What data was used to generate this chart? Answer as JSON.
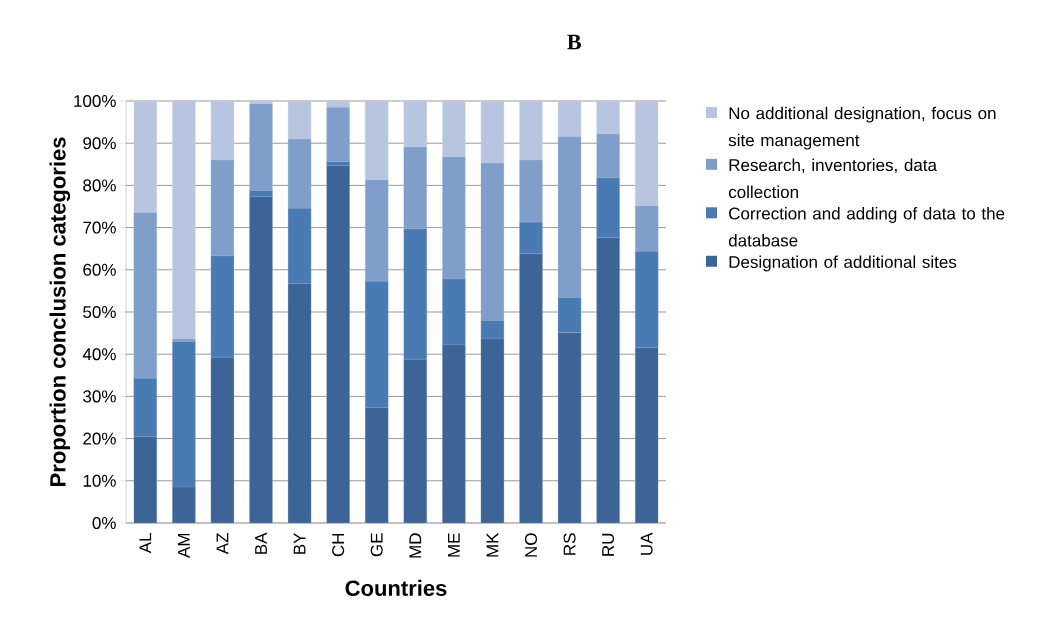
{
  "chart_data": {
    "type": "bar",
    "stacked": true,
    "title": "B",
    "xlabel": "Countries",
    "ylabel": "Proportion conclusion categories",
    "categories": [
      "AL",
      "AM",
      "AZ",
      "BA",
      "BY",
      "CH",
      "GE",
      "MD",
      "ME",
      "MK",
      "NO",
      "RS",
      "RU",
      "UA"
    ],
    "series": [
      {
        "name": "Designation of additional sites",
        "color": "#3c6496",
        "values": [
          20.5,
          8.5,
          39.3,
          77.3,
          56.7,
          84.7,
          27.3,
          38.8,
          42.2,
          43.6,
          63.8,
          45.1,
          67.6,
          41.5
        ]
      },
      {
        "name": "Correction and adding of data to the database",
        "color": "#4a7ab3",
        "values": [
          13.8,
          34.5,
          24,
          1.5,
          17.9,
          0.9,
          30,
          30.9,
          15.6,
          4.4,
          7.5,
          8.3,
          14.2,
          22.9
        ]
      },
      {
        "name": "Research, inventories, data collection",
        "color": "#7f9ec9",
        "values": [
          39.3,
          0.6,
          22.7,
          20.5,
          16.4,
          12.9,
          24,
          19.4,
          29,
          37.3,
          14.7,
          38.2,
          10.4,
          10.8
        ]
      },
      {
        "name": "No additional designation, focus on site management",
        "color": "#b7c5e0",
        "values": [
          26.4,
          56.4,
          14,
          0.7,
          9,
          1.5,
          18.7,
          10.9,
          13.2,
          14.7,
          14,
          8.4,
          7.8,
          24.8
        ]
      }
    ],
    "ylim": [
      0,
      100
    ],
    "yticks": [
      {
        "value": 0,
        "label": "0%"
      },
      {
        "value": 10,
        "label": "10%"
      },
      {
        "value": 20,
        "label": "20%"
      },
      {
        "value": 30,
        "label": "30%"
      },
      {
        "value": 40,
        "label": "40%"
      },
      {
        "value": 50,
        "label": "50%"
      },
      {
        "value": 60,
        "label": "60%"
      },
      {
        "value": 70,
        "label": "70%"
      },
      {
        "value": 80,
        "label": "80%"
      },
      {
        "value": 90,
        "label": "90%"
      },
      {
        "value": 100,
        "label": "100%"
      }
    ],
    "grid": "y",
    "legend": "right"
  }
}
